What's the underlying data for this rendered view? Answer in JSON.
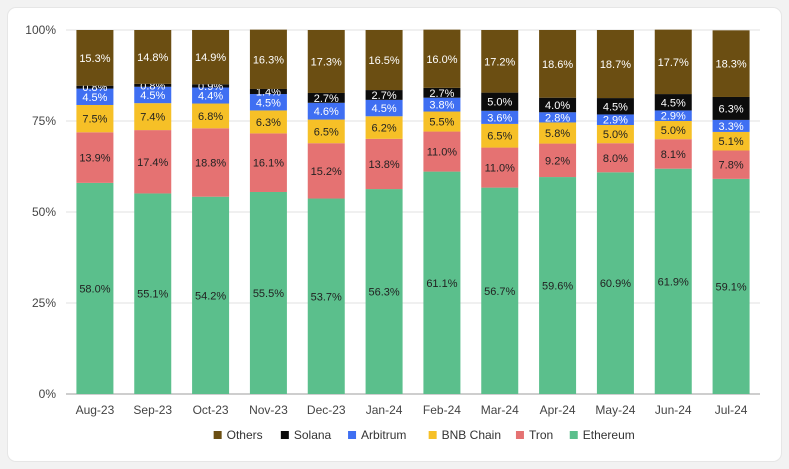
{
  "chart_data": {
    "type": "bar",
    "stacked": true,
    "categories": [
      "Aug-23",
      "Sep-23",
      "Oct-23",
      "Nov-23",
      "Dec-23",
      "Jan-24",
      "Feb-24",
      "Mar-24",
      "Apr-24",
      "May-24",
      "Jun-24",
      "Jul-24"
    ],
    "y_ticks": [
      "0%",
      "25%",
      "50%",
      "75%",
      "100%"
    ],
    "ylim": [
      0,
      100
    ],
    "grid": true,
    "legend_position": "bottom",
    "series": [
      {
        "name": "Ethereum",
        "color": "#5bbf8c",
        "label_color": "#222222",
        "values": [
          58.0,
          55.1,
          54.2,
          55.5,
          53.7,
          56.3,
          61.1,
          56.7,
          59.6,
          60.9,
          61.9,
          59.1
        ],
        "labels": [
          "58.0%",
          "55.1%",
          "54.2%",
          "55.5%",
          "53.7%",
          "56.3%",
          "61.1%",
          "56.7%",
          "59.6%",
          "60.9%",
          "61.9%",
          "59.1%"
        ]
      },
      {
        "name": "Tron",
        "color": "#e57272",
        "label_color": "#222222",
        "values": [
          13.9,
          17.4,
          18.8,
          16.1,
          15.2,
          13.8,
          11.0,
          11.0,
          9.2,
          8.0,
          8.1,
          7.8
        ],
        "labels": [
          "13.9%",
          "17.4%",
          "18.8%",
          "16.1%",
          "15.2%",
          "13.8%",
          "11.0%",
          "11.0%",
          "9.2%",
          "8.0%",
          "8.1%",
          "7.8%"
        ]
      },
      {
        "name": "BNB Chain",
        "color": "#f6c027",
        "label_color": "#222222",
        "values": [
          7.5,
          7.4,
          6.8,
          6.3,
          6.5,
          6.2,
          5.5,
          6.5,
          5.8,
          5.0,
          5.0,
          5.1
        ],
        "labels": [
          "7.5%",
          "7.4%",
          "6.8%",
          "6.3%",
          "6.5%",
          "6.2%",
          "5.5%",
          "6.5%",
          "5.8%",
          "5.0%",
          "5.0%",
          "5.1%"
        ]
      },
      {
        "name": "Arbitrum",
        "color": "#3f6ff2",
        "label_color": "#ffffff",
        "values": [
          4.5,
          4.5,
          4.4,
          4.5,
          4.6,
          4.5,
          3.8,
          3.6,
          2.8,
          2.9,
          2.9,
          3.3
        ],
        "labels": [
          "4.5%",
          "4.5%",
          "4.4%",
          "4.5%",
          "4.6%",
          "4.5%",
          "3.8%",
          "3.6%",
          "2.8%",
          "2.9%",
          "2.9%",
          "3.3%"
        ]
      },
      {
        "name": "Solana",
        "color": "#0c0c0c",
        "label_color": "#ffffff",
        "values": [
          0.8,
          0.8,
          0.9,
          1.4,
          2.7,
          2.7,
          2.7,
          5.0,
          4.0,
          4.5,
          4.5,
          6.3
        ],
        "labels": [
          "0.8%",
          "0.8%",
          "0.9%",
          "1.4%",
          "2.7%",
          "2.7%",
          "2.7%",
          "5.0%",
          "4.0%",
          "4.5%",
          "4.5%",
          "6.3%"
        ]
      },
      {
        "name": "Others",
        "color": "#6b4e12",
        "label_color": "#ffffff",
        "values": [
          15.3,
          14.8,
          14.9,
          16.3,
          17.3,
          16.5,
          16.0,
          17.2,
          18.6,
          18.7,
          17.7,
          18.3
        ],
        "labels": [
          "15.3%",
          "14.8%",
          "14.9%",
          "16.3%",
          "17.3%",
          "16.5%",
          "16.0%",
          "17.2%",
          "18.6%",
          "18.7%",
          "17.7%",
          "18.3%"
        ]
      }
    ],
    "legend_order": [
      "Others",
      "Solana",
      "Arbitrum",
      "BNB Chain",
      "Tron",
      "Ethereum"
    ]
  }
}
